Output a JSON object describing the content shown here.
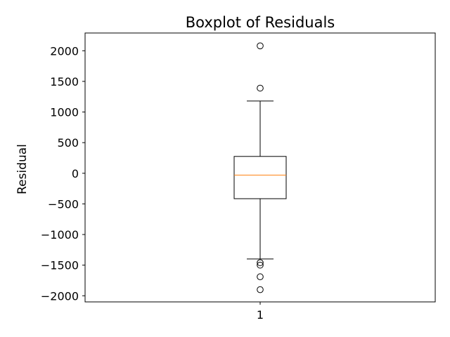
{
  "chart_data": {
    "type": "boxplot",
    "title": "Boxplot of Residuals",
    "xlabel": "",
    "ylabel": "Residual",
    "categories": [
      "1"
    ],
    "ylim": [
      -2100,
      2290
    ],
    "y_ticks": [
      -2000,
      -1500,
      -1000,
      -500,
      0,
      500,
      1000,
      1500,
      2000
    ],
    "y_tick_labels": [
      "−2000",
      "−1500",
      "−1000",
      "−500",
      "0",
      "500",
      "1000",
      "1500",
      "2000"
    ],
    "boxes": [
      {
        "category": "1",
        "whisker_low": -1400,
        "q1": -415,
        "median": -30,
        "q3": 275,
        "whisker_high": 1180,
        "outliers": [
          2080,
          1390,
          -1460,
          -1500,
          -1690,
          -1900
        ]
      }
    ],
    "grid": false,
    "colors": {
      "box": "#000000",
      "median": "#ff7f0e",
      "outlier": "#000000"
    }
  }
}
